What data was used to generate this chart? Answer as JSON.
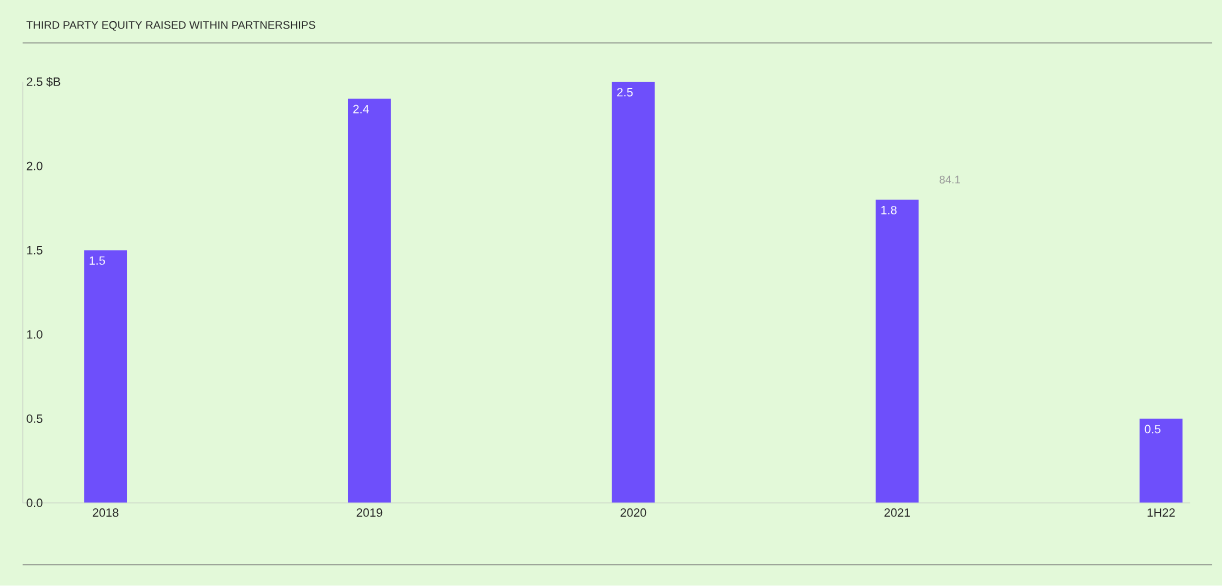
{
  "chart_data": {
    "type": "bar",
    "title": "THIRD PARTY EQUITY RAISED WITHIN PARTNERSHIPS",
    "categories": [
      "2018",
      "2019",
      "2020",
      "2021",
      "1H22"
    ],
    "values": [
      1.5,
      2.4,
      2.5,
      1.8,
      0.5
    ],
    "color": "#6e4ffb",
    "ylim": [
      0,
      2.5
    ],
    "yticks": [
      {
        "value": 0,
        "label": "0.0"
      },
      0.5,
      {
        "value": 1,
        "label": "1.0"
      },
      1.5,
      {
        "value": 2,
        "label": "2.0"
      },
      {
        "value": 2.5,
        "label": "2.5 $B"
      }
    ],
    "data_labels": true,
    "grid": false,
    "annotations": [
      "84.1"
    ]
  }
}
